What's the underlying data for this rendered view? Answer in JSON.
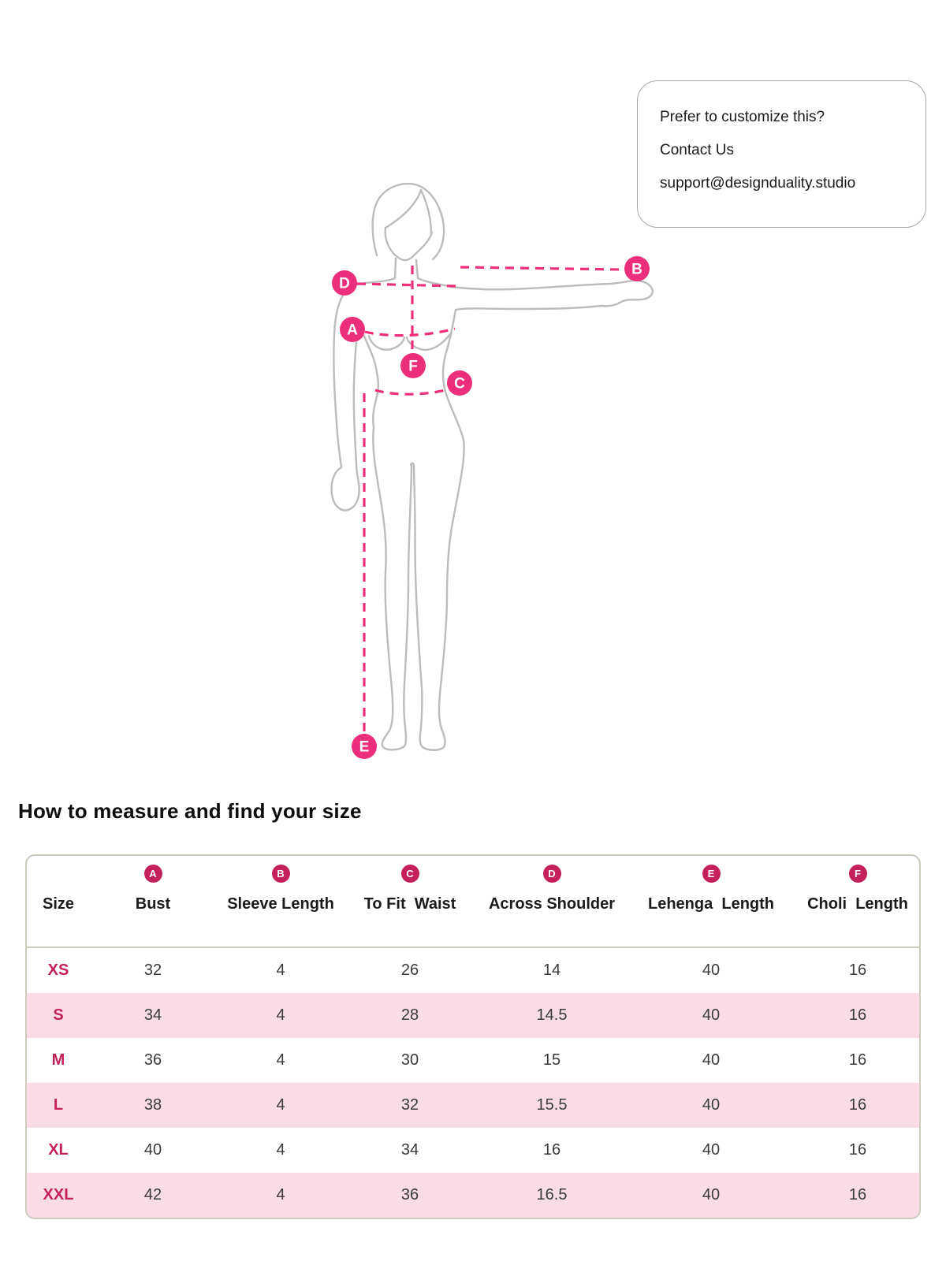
{
  "callout": {
    "line1": "Prefer to customize this?",
    "line2": "Contact Us",
    "email": "support@designduality.studio"
  },
  "heading": "How to measure and find your size",
  "figure": {
    "description": "female-body-measurement-diagram",
    "markers": [
      {
        "letter": "A"
      },
      {
        "letter": "B"
      },
      {
        "letter": "C"
      },
      {
        "letter": "D"
      },
      {
        "letter": "E"
      },
      {
        "letter": "F"
      }
    ]
  },
  "table": {
    "size_column_label": "Size",
    "columns": [
      {
        "letter": "A",
        "label": "Bust"
      },
      {
        "letter": "B",
        "label": "Sleeve Length"
      },
      {
        "letter": "C",
        "label": "To Fit  Waist"
      },
      {
        "letter": "D",
        "label": "Across Shoulder"
      },
      {
        "letter": "E",
        "label": "Lehenga  Length"
      },
      {
        "letter": "F",
        "label": "Choli  Length"
      }
    ],
    "rows": [
      {
        "size": "XS",
        "values": [
          "32",
          "4",
          "26",
          "14",
          "40",
          "16"
        ]
      },
      {
        "size": "S",
        "values": [
          "34",
          "4",
          "28",
          "14.5",
          "40",
          "16"
        ]
      },
      {
        "size": "M",
        "values": [
          "36",
          "4",
          "30",
          "15",
          "40",
          "16"
        ]
      },
      {
        "size": "L",
        "values": [
          "38",
          "4",
          "32",
          "15.5",
          "40",
          "16"
        ]
      },
      {
        "size": "XL",
        "values": [
          "40",
          "4",
          "34",
          "16",
          "40",
          "16"
        ]
      },
      {
        "size": "XXL",
        "values": [
          "42",
          "4",
          "36",
          "16.5",
          "40",
          "16"
        ]
      }
    ]
  },
  "colors": {
    "marker_pink": "#ED2E7C",
    "badge_crimson": "#C4205C",
    "row_pink": "#F9DCE6",
    "table_border": "#CCC9BD",
    "figure_gray": "#BCBCBC",
    "value_text": "#3A3A3A"
  }
}
